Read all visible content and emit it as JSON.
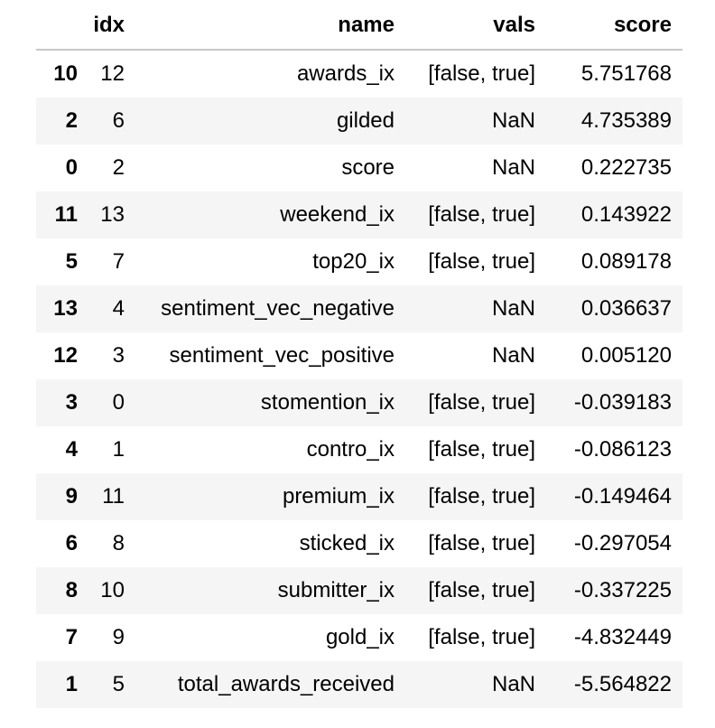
{
  "table": {
    "columns": [
      "",
      "idx",
      "name",
      "vals",
      "score"
    ],
    "rows": [
      {
        "index": "10",
        "idx": "12",
        "name": "awards_ix",
        "vals": "[false, true]",
        "score": "5.751768"
      },
      {
        "index": "2",
        "idx": "6",
        "name": "gilded",
        "vals": "NaN",
        "score": "4.735389"
      },
      {
        "index": "0",
        "idx": "2",
        "name": "score",
        "vals": "NaN",
        "score": "0.222735"
      },
      {
        "index": "11",
        "idx": "13",
        "name": "weekend_ix",
        "vals": "[false, true]",
        "score": "0.143922"
      },
      {
        "index": "5",
        "idx": "7",
        "name": "top20_ix",
        "vals": "[false, true]",
        "score": "0.089178"
      },
      {
        "index": "13",
        "idx": "4",
        "name": "sentiment_vec_negative",
        "vals": "NaN",
        "score": "0.036637"
      },
      {
        "index": "12",
        "idx": "3",
        "name": "sentiment_vec_positive",
        "vals": "NaN",
        "score": "0.005120"
      },
      {
        "index": "3",
        "idx": "0",
        "name": "stomention_ix",
        "vals": "[false, true]",
        "score": "-0.039183"
      },
      {
        "index": "4",
        "idx": "1",
        "name": "contro_ix",
        "vals": "[false, true]",
        "score": "-0.086123"
      },
      {
        "index": "9",
        "idx": "11",
        "name": "premium_ix",
        "vals": "[false, true]",
        "score": "-0.149464"
      },
      {
        "index": "6",
        "idx": "8",
        "name": "sticked_ix",
        "vals": "[false, true]",
        "score": "-0.297054"
      },
      {
        "index": "8",
        "idx": "10",
        "name": "submitter_ix",
        "vals": "[false, true]",
        "score": "-0.337225"
      },
      {
        "index": "7",
        "idx": "9",
        "name": "gold_ix",
        "vals": "[false, true]",
        "score": "-4.832449"
      },
      {
        "index": "1",
        "idx": "5",
        "name": "total_awards_received",
        "vals": "NaN",
        "score": "-5.564822"
      }
    ]
  }
}
